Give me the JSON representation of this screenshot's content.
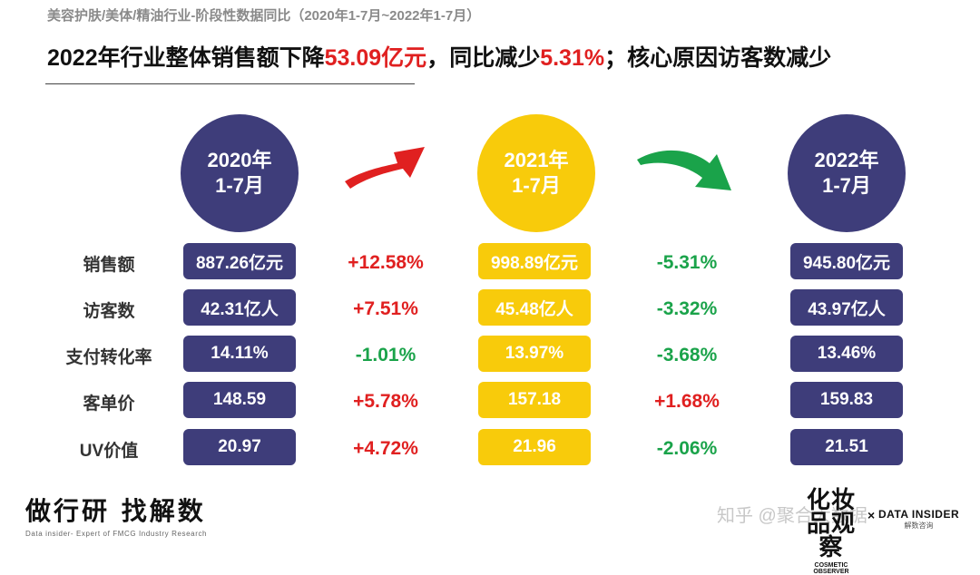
{
  "subtitle": "美容护肤/美体/精油行业-阶段性数据同比（2020年1-7月~2022年1-7月）",
  "headline": {
    "part1": "2022年行业整体销售额下降",
    "highlight1": "53.09亿元",
    "part2": "，同比减少",
    "highlight2": "5.31%",
    "part3": "；核心原因访客数减少"
  },
  "periods": [
    {
      "year": "2020年",
      "months": "1-7月"
    },
    {
      "year": "2021年",
      "months": "1-7月"
    },
    {
      "year": "2022年",
      "months": "1-7月"
    }
  ],
  "arrows": [
    {
      "icon": "red-up-arrow-icon",
      "color": "#e02020"
    },
    {
      "icon": "green-down-arrow-icon",
      "color": "#1aa34a"
    }
  ],
  "metrics": [
    {
      "label": "销售额",
      "v2020": "887.26亿元",
      "chg1": "+12.58%",
      "v2021": "998.89亿元",
      "chg2": "-5.31%",
      "v2022": "945.80亿元"
    },
    {
      "label": "访客数",
      "v2020": "42.31亿人",
      "chg1": "+7.51%",
      "v2021": "45.48亿人",
      "chg2": "-3.32%",
      "v2022": "43.97亿人"
    },
    {
      "label": "支付转化率",
      "v2020": "14.11%",
      "chg1": "-1.01%",
      "v2021": "13.97%",
      "chg2": "-3.68%",
      "v2022": "13.46%"
    },
    {
      "label": "客单价",
      "v2020": "148.59",
      "chg1": "+5.78%",
      "v2021": "157.18",
      "chg2": "+1.68%",
      "v2022": "159.83"
    },
    {
      "label": "UV价值",
      "v2020": "20.97",
      "chg1": "+4.72%",
      "v2021": "21.96",
      "chg2": "-2.06%",
      "v2022": "21.51"
    }
  ],
  "footer": {
    "brand": "做行研 找解数",
    "brand_sub": "Data insider- Expert of FMCG Industry Research",
    "watermark": "知乎 @聚合大数据",
    "logo1_main": "化妆品观察",
    "logo1_sub": "COSMETIC OBSERVER",
    "logo_x": "×",
    "logo2_main": "DATA INSIDER",
    "logo2_sub": "解数咨询"
  },
  "colors": {
    "navy": "#3e3d7a",
    "gold": "#f8cb0b",
    "up": "#e02020",
    "down": "#1aa34a"
  }
}
